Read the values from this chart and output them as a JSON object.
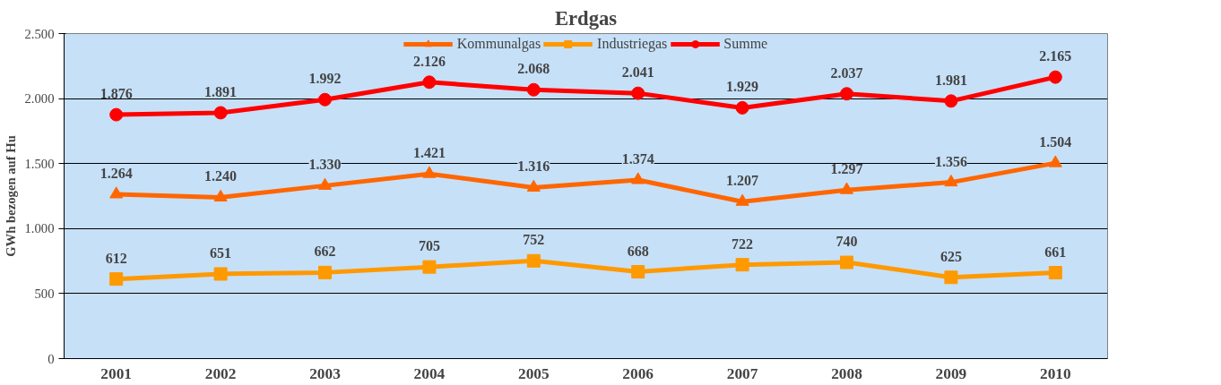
{
  "chart_data": {
    "type": "line",
    "title": "Erdgas",
    "ylabel": "GWh bezogen auf Hu",
    "categories": [
      "2001",
      "2002",
      "2003",
      "2004",
      "2005",
      "2006",
      "2007",
      "2008",
      "2009",
      "2010"
    ],
    "series": [
      {
        "name": "Kommunalgas",
        "color": "#ff6600",
        "marker": "triangle",
        "values": [
          1264,
          1240,
          1330,
          1421,
          1316,
          1374,
          1207,
          1297,
          1356,
          1504
        ],
        "value_labels": [
          "1.264",
          "1.240",
          "1.330",
          "1.421",
          "1.316",
          "1.374",
          "1.207",
          "1.297",
          "1.356",
          "1.504"
        ]
      },
      {
        "name": "Industriegas",
        "color": "#ff9900",
        "marker": "square",
        "values": [
          612,
          651,
          662,
          705,
          752,
          668,
          722,
          740,
          625,
          661
        ],
        "value_labels": [
          "612",
          "651",
          "662",
          "705",
          "752",
          "668",
          "722",
          "740",
          "625",
          "661"
        ]
      },
      {
        "name": "Summe",
        "color": "#ff0000",
        "marker": "circle",
        "values": [
          1876,
          1891,
          1992,
          2126,
          2068,
          2041,
          1929,
          2037,
          1981,
          2165
        ],
        "value_labels": [
          "1.876",
          "1.891",
          "1.992",
          "2.126",
          "2.068",
          "2.041",
          "1.929",
          "2.037",
          "1.981",
          "2.165"
        ]
      }
    ],
    "ylim": [
      0,
      2500
    ],
    "yticks": [
      0,
      {
        "value": 500,
        "label": "500"
      },
      {
        "value": 1000,
        "label": "1.000"
      },
      {
        "value": 1500,
        "label": "1.500"
      },
      {
        "value": 2000,
        "label": "2.000"
      },
      {
        "value": 2500,
        "label": "2.500"
      }
    ],
    "grid": "y",
    "legend": "top",
    "line_style": "solid"
  }
}
